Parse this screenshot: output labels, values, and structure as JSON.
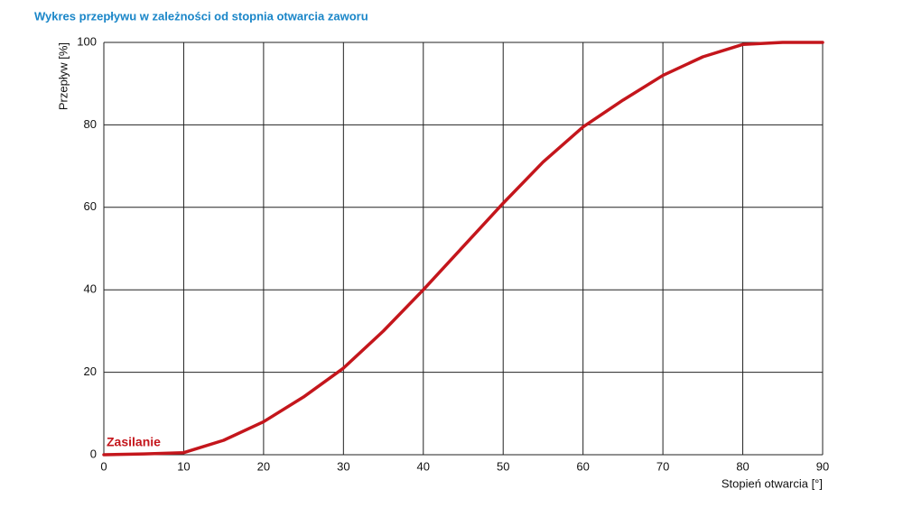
{
  "chart_data": {
    "type": "line",
    "title": "Wykres przepływu w zależności od stopnia otwarcia zaworu",
    "x_label": "Stopień otwarcia [°]",
    "y_label": "Przepływ [%]",
    "x": [
      0,
      5,
      10,
      15,
      20,
      25,
      30,
      35,
      40,
      45,
      50,
      55,
      60,
      65,
      70,
      75,
      80,
      85,
      90
    ],
    "series": [
      {
        "name": "Zasilanie",
        "color": "#c4161c",
        "values": [
          0,
          0.2,
          0.5,
          3.5,
          8,
          14,
          21,
          30,
          40,
          50.5,
          61,
          71,
          79.5,
          86,
          92,
          96.5,
          99.5,
          100,
          100
        ]
      }
    ],
    "xlim": [
      0,
      90
    ],
    "xticks": [
      0,
      10,
      20,
      30,
      40,
      50,
      60,
      70,
      80,
      90
    ],
    "ylim": [
      0,
      100
    ],
    "yticks": [
      0,
      20,
      40,
      60,
      80,
      100
    ],
    "grid": true
  }
}
